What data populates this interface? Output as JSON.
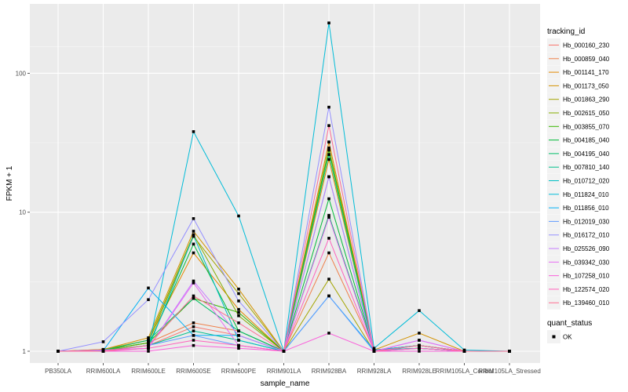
{
  "chart_data": {
    "type": "line",
    "xlabel": "sample_name",
    "ylabel": "FPKM + 1",
    "y_scale": "log10",
    "ylim": [
      1,
      240
    ],
    "y_ticks": [
      1,
      10,
      100
    ],
    "y_tick_labels": [
      "1",
      "10",
      "100"
    ],
    "grid": true,
    "legend_placement": "right",
    "categories": [
      "PB350LA",
      "RRIM600LA",
      "RRIM600LE",
      "RRIM600SE",
      "RRIM600PE",
      "RRIM901LA",
      "RRIM928BA",
      "RRIM928LA",
      "RRIM928LE",
      "RRIM105LA_Control",
      "RRIM105LA_Stressed"
    ],
    "legend_title": "tracking_id",
    "shape_legend_title": "quant_status",
    "shape_legend_label": "OK",
    "series": [
      {
        "name": "Hb_000160_230",
        "color": "#F8766D",
        "values": [
          1,
          1.02,
          1.1,
          1.5,
          1.3,
          1.0,
          32,
          1.02,
          1.1,
          1.0,
          1.0
        ]
      },
      {
        "name": "Hb_000859_040",
        "color": "#EF7F49",
        "values": [
          1,
          1.02,
          1.15,
          1.6,
          1.4,
          1.0,
          5.1,
          1.02,
          1.05,
          1.0,
          1.0
        ]
      },
      {
        "name": "Hb_001141_170",
        "color": "#E38900",
        "values": [
          1,
          1.03,
          1.2,
          5.1,
          2.0,
          1.0,
          24,
          1.02,
          1.1,
          1.0,
          1.0
        ]
      },
      {
        "name": "Hb_001173_050",
        "color": "#D39200",
        "values": [
          1,
          1.03,
          1.25,
          7.3,
          2.8,
          1.0,
          32,
          1.02,
          1.35,
          1.0,
          1.0
        ]
      },
      {
        "name": "Hb_001863_290",
        "color": "#A3A500",
        "values": [
          1,
          1.02,
          1.15,
          6.7,
          2.6,
          1.0,
          3.3,
          1.0,
          1.1,
          1.0,
          1.0
        ]
      },
      {
        "name": "Hb_002615_050",
        "color": "#85AD00",
        "values": [
          1,
          1.02,
          1.2,
          6.9,
          1.8,
          1.0,
          29,
          1.02,
          1.1,
          1.0,
          1.0
        ]
      },
      {
        "name": "Hb_003855_070",
        "color": "#39B600",
        "values": [
          1,
          1.02,
          1.15,
          2.4,
          1.9,
          1.0,
          28,
          1.02,
          1.1,
          1.0,
          1.0
        ]
      },
      {
        "name": "Hb_004185_040",
        "color": "#00BA38",
        "values": [
          1,
          1.01,
          1.1,
          5.9,
          1.4,
          1.0,
          12.5,
          1.02,
          1.05,
          1.0,
          1.0
        ]
      },
      {
        "name": "Hb_004195_040",
        "color": "#00BE67",
        "values": [
          1,
          1.02,
          1.2,
          2.4,
          1.4,
          1.0,
          9.5,
          1.02,
          1.05,
          1.0,
          1.0
        ]
      },
      {
        "name": "Hb_007810_140",
        "color": "#00C08B",
        "values": [
          1,
          1.01,
          1.1,
          1.4,
          1.2,
          1.0,
          26,
          1.0,
          1.05,
          1.0,
          1.0
        ]
      },
      {
        "name": "Hb_010712_020",
        "color": "#00BFC4",
        "values": [
          1,
          1.01,
          1.05,
          6.8,
          1.2,
          1.0,
          18,
          1.02,
          1.05,
          1.0,
          1.0
        ]
      },
      {
        "name": "Hb_011824_010",
        "color": "#00BCD8",
        "values": [
          1,
          1.01,
          1.05,
          38,
          9.4,
          1.0,
          230,
          1.05,
          1.96,
          1.02,
          1.0
        ]
      },
      {
        "name": "Hb_011856_010",
        "color": "#00B0F6",
        "values": [
          1,
          1.01,
          2.85,
          1.3,
          1.3,
          1.0,
          2.5,
          1.02,
          1.1,
          1.0,
          1.0
        ]
      },
      {
        "name": "Hb_012019_030",
        "color": "#619CFF",
        "values": [
          1,
          1.0,
          1.1,
          1.3,
          1.1,
          1.0,
          2.5,
          1.0,
          1.1,
          1.0,
          1.0
        ]
      },
      {
        "name": "Hb_016172_010",
        "color": "#9590FF",
        "values": [
          1,
          1.17,
          2.35,
          9.0,
          2.3,
          1.0,
          57,
          1.0,
          1.2,
          1.0,
          1.0
        ]
      },
      {
        "name": "Hb_025526_090",
        "color": "#C77CFF",
        "values": [
          1,
          1.02,
          1.05,
          3.2,
          1.3,
          1.0,
          18,
          1.0,
          1.05,
          1.0,
          1.0
        ]
      },
      {
        "name": "Hb_039342_030",
        "color": "#E76BF3",
        "values": [
          1,
          1.02,
          1.05,
          3.1,
          1.1,
          1.0,
          9.2,
          1.0,
          1.2,
          1.0,
          1.0
        ]
      },
      {
        "name": "Hb_107258_010",
        "color": "#FA62DB",
        "values": [
          1,
          1.0,
          1.0,
          1.1,
          1.05,
          1.0,
          1.35,
          1.0,
          1.0,
          1.0,
          1.0
        ]
      },
      {
        "name": "Hb_122574_020",
        "color": "#FF62BC",
        "values": [
          1,
          1.0,
          1.05,
          1.2,
          1.1,
          1.0,
          6.5,
          1.0,
          1.05,
          1.0,
          1.0
        ]
      },
      {
        "name": "Hb_139460_010",
        "color": "#FF6C91",
        "values": [
          1,
          1.0,
          1.1,
          2.5,
          1.6,
          1.0,
          42,
          1.0,
          1.1,
          1.0,
          1.0
        ]
      }
    ]
  }
}
